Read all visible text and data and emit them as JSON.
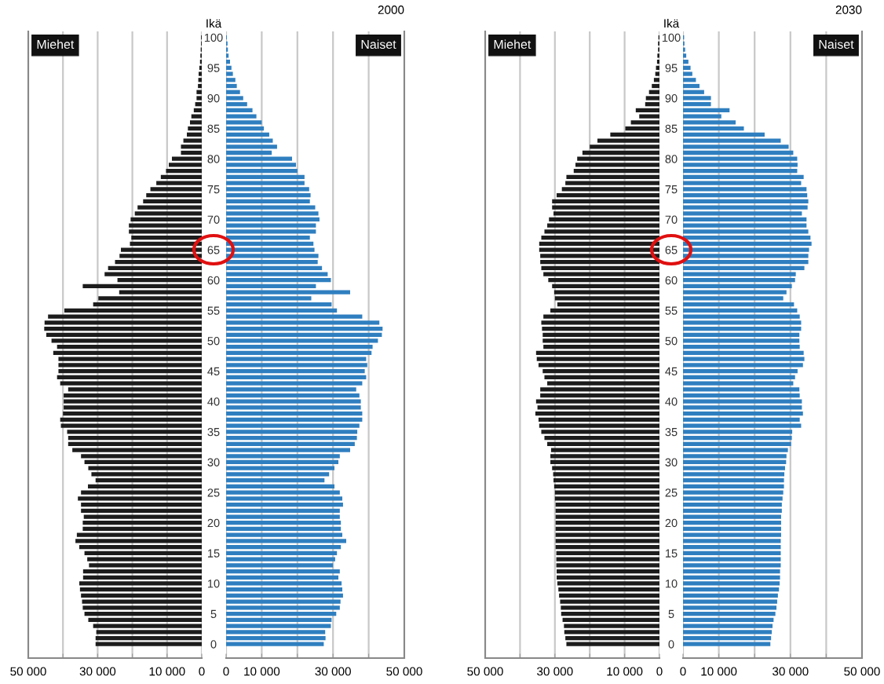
{
  "chart_data": [
    {
      "type": "bar",
      "orientation": "horizontal",
      "ylabel": "Ikä",
      "legend": "top left",
      "grid": "x",
      "categories": [
        "100",
        null,
        null,
        null,
        null,
        "95",
        null,
        null,
        null,
        null,
        "90",
        null,
        null,
        null,
        null,
        "85",
        null,
        null,
        null,
        null,
        "80",
        null,
        null,
        null,
        null,
        "75",
        null,
        null,
        null,
        null,
        "70",
        null,
        null,
        null,
        null,
        "65",
        null,
        null,
        null,
        null,
        "60",
        null,
        null,
        null,
        null,
        "55",
        null,
        null,
        null,
        null,
        "50",
        null,
        null,
        null,
        null,
        "45",
        null,
        null,
        null,
        null,
        "40",
        null,
        null,
        null,
        null,
        "35",
        null,
        null,
        null,
        null,
        "30",
        null,
        null,
        null,
        null,
        "25",
        null,
        null,
        null,
        null,
        "20",
        null,
        null,
        null,
        null,
        "15",
        null,
        null,
        null,
        null,
        "10",
        null,
        null,
        null,
        null,
        "5",
        null,
        null,
        null,
        null,
        "0"
      ],
      "xlim": [
        50000,
        0
      ],
      "xticks": [
        {
          "value": 50000,
          "label": "50 000"
        },
        {
          "value": 40000,
          "label": null
        },
        {
          "value": 30000,
          "label": "30 000"
        },
        {
          "value": 20000,
          "label": null
        },
        {
          "value": 10000,
          "label": "10 000"
        },
        0
      ],
      "series": [
        {
          "name": "Miehet",
          "color": "#1c1c1c",
          "values": [
            200,
            200,
            300,
            400,
            500,
            700,
            900,
            1000,
            1100,
            1500,
            1500,
            1900,
            2300,
            3000,
            3400,
            4000,
            4300,
            5300,
            6000,
            6000,
            8600,
            9500,
            10300,
            11800,
            13100,
            14800,
            16000,
            16900,
            18500,
            19300,
            20500,
            21000,
            21000,
            20300,
            20700,
            23300,
            23700,
            25000,
            27000,
            28000,
            24300,
            34300,
            23800,
            29800,
            31300,
            39600,
            44300,
            45300,
            45400,
            44800,
            43300,
            41700,
            42800,
            41300,
            41300,
            41300,
            41700,
            40800,
            38500,
            39800,
            39800,
            39800,
            40000,
            40800,
            40600,
            38800,
            38500,
            38500,
            37300,
            34800,
            33800,
            32700,
            31800,
            30600,
            32800,
            34800,
            35700,
            34800,
            34800,
            34000,
            34300,
            34300,
            36000,
            36400,
            35300,
            33800,
            33000,
            32500,
            34200,
            34200,
            35300,
            35100,
            34800,
            34500,
            34300,
            33800,
            32700,
            31300,
            30400,
            30600,
            30600
          ]
        }
      ]
    },
    {
      "type": "bar",
      "orientation": "horizontal",
      "title": "2000",
      "legend": "top right",
      "grid": "x",
      "tick_labels": "x",
      "categories": [
        "100",
        null,
        null,
        null,
        null,
        "95",
        null,
        null,
        null,
        null,
        "90",
        null,
        null,
        null,
        null,
        "85",
        null,
        null,
        null,
        null,
        "80",
        null,
        null,
        null,
        null,
        "75",
        null,
        null,
        null,
        null,
        "70",
        null,
        null,
        null,
        null,
        "65",
        null,
        null,
        null,
        null,
        "60",
        null,
        null,
        null,
        null,
        "55",
        null,
        null,
        null,
        null,
        "50",
        null,
        null,
        null,
        null,
        "45",
        null,
        null,
        null,
        null,
        "40",
        null,
        null,
        null,
        null,
        "35",
        null,
        null,
        null,
        null,
        "30",
        null,
        null,
        null,
        null,
        "25",
        null,
        null,
        null,
        null,
        "20",
        null,
        null,
        null,
        null,
        "15",
        null,
        null,
        null,
        null,
        "10",
        null,
        null,
        null,
        null,
        "5",
        null,
        null,
        null,
        null,
        "0"
      ],
      "xlim": [
        0,
        50000
      ],
      "xticks": [
        0,
        {
          "value": 10000,
          "label": "10 000"
        },
        {
          "value": 20000,
          "label": null
        },
        {
          "value": 30000,
          "label": "30 000"
        },
        {
          "value": 40000,
          "label": null
        },
        {
          "value": 50000,
          "label": "50 000"
        }
      ],
      "series": [
        {
          "name": "Naiset",
          "color": "#2f7fc0",
          "values": [
            200,
            400,
            500,
            700,
            1100,
            1500,
            1900,
            2600,
            3000,
            3900,
            4800,
            5900,
            7400,
            8500,
            10000,
            10600,
            12100,
            13100,
            14300,
            12800,
            18500,
            19600,
            20000,
            22000,
            22000,
            23300,
            23700,
            23500,
            25000,
            25900,
            26200,
            25200,
            25200,
            23500,
            24500,
            24800,
            25900,
            25700,
            26900,
            28500,
            29400,
            25200,
            34800,
            23900,
            29600,
            31100,
            38200,
            43000,
            43900,
            43700,
            42600,
            41100,
            40800,
            39300,
            39600,
            38900,
            39300,
            38200,
            36500,
            37400,
            37800,
            37800,
            38200,
            38200,
            37400,
            36800,
            36700,
            36100,
            34800,
            31900,
            31500,
            30400,
            28900,
            27600,
            30400,
            31900,
            32600,
            32800,
            31900,
            31900,
            32200,
            32200,
            32600,
            33700,
            32200,
            31100,
            30600,
            30000,
            31900,
            31500,
            32400,
            32600,
            32800,
            32100,
            31900,
            30900,
            29600,
            29400,
            27800,
            27900,
            27400
          ]
        }
      ]
    },
    {
      "type": "bar",
      "orientation": "horizontal",
      "ylabel": "Ikä",
      "legend": "top left",
      "grid": "x",
      "categories": [
        "100",
        null,
        null,
        null,
        null,
        "95",
        null,
        null,
        null,
        null,
        "90",
        null,
        null,
        null,
        null,
        "85",
        null,
        null,
        null,
        null,
        "80",
        null,
        null,
        null,
        null,
        "75",
        null,
        null,
        null,
        null,
        "70",
        null,
        null,
        null,
        null,
        "65",
        null,
        null,
        null,
        null,
        "60",
        null,
        null,
        null,
        null,
        "55",
        null,
        null,
        null,
        null,
        "50",
        null,
        null,
        null,
        null,
        "45",
        null,
        null,
        null,
        null,
        "40",
        null,
        null,
        null,
        null,
        "35",
        null,
        null,
        null,
        null,
        "30",
        null,
        null,
        null,
        null,
        "25",
        null,
        null,
        null,
        null,
        "20",
        null,
        null,
        null,
        null,
        "15",
        null,
        null,
        null,
        null,
        "10",
        null,
        null,
        null,
        null,
        "5",
        null,
        null,
        null,
        null,
        "0"
      ],
      "xlim": [
        50000,
        0
      ],
      "xticks": [
        {
          "value": 50000,
          "label": "50 000"
        },
        {
          "value": 40000,
          "label": null
        },
        {
          "value": 30000,
          "label": "30 000"
        },
        {
          "value": 20000,
          "label": null
        },
        {
          "value": 10000,
          "label": "10 000"
        },
        0
      ],
      "series": [
        {
          "name": "Miehet",
          "color": "#1c1c1c",
          "values": [
            300,
            400,
            400,
            600,
            700,
            1000,
            1200,
            1600,
            2200,
            3000,
            3900,
            4100,
            6800,
            5800,
            8200,
            9800,
            14100,
            17800,
            20000,
            22100,
            23600,
            24100,
            24600,
            26700,
            27000,
            28000,
            29500,
            30800,
            30800,
            30400,
            31700,
            32200,
            33000,
            33900,
            34500,
            34500,
            34200,
            34200,
            33900,
            33300,
            31900,
            30800,
            30200,
            30000,
            29300,
            31300,
            33300,
            33900,
            33700,
            33500,
            33500,
            33300,
            35400,
            35200,
            34700,
            33500,
            33000,
            32200,
            34200,
            34200,
            35400,
            35000,
            35600,
            34700,
            34500,
            33900,
            33000,
            32200,
            31100,
            31300,
            31300,
            30800,
            30500,
            30400,
            30200,
            30000,
            30000,
            29800,
            29800,
            29800,
            29800,
            29800,
            29800,
            29800,
            29800,
            29600,
            29600,
            29600,
            29500,
            29500,
            29300,
            29000,
            28800,
            28500,
            28300,
            28200,
            27800,
            27400,
            27300,
            27000,
            26700
          ]
        }
      ]
    },
    {
      "type": "bar",
      "orientation": "horizontal",
      "title": "2030",
      "legend": "top right",
      "grid": "x",
      "tick_labels": "x",
      "categories": [
        "100",
        null,
        null,
        null,
        null,
        "95",
        null,
        null,
        null,
        null,
        "90",
        null,
        null,
        null,
        null,
        "85",
        null,
        null,
        null,
        null,
        "80",
        null,
        null,
        null,
        null,
        "75",
        null,
        null,
        null,
        null,
        "70",
        null,
        null,
        null,
        null,
        "65",
        null,
        null,
        null,
        null,
        "60",
        null,
        null,
        null,
        null,
        "55",
        null,
        null,
        null,
        null,
        "50",
        null,
        null,
        null,
        null,
        "45",
        null,
        null,
        null,
        null,
        "40",
        null,
        null,
        null,
        null,
        "35",
        null,
        null,
        null,
        null,
        "30",
        null,
        null,
        null,
        null,
        "25",
        null,
        null,
        null,
        null,
        "20",
        null,
        null,
        null,
        null,
        "15",
        null,
        null,
        null,
        null,
        "10",
        null,
        null,
        null,
        null,
        "5",
        null,
        null,
        null,
        null,
        "0"
      ],
      "xlim": [
        0,
        50000
      ],
      "xticks": [
        0,
        {
          "value": 10000,
          "label": "10 000"
        },
        {
          "value": 20000,
          "label": null
        },
        {
          "value": 30000,
          "label": "30 000"
        },
        {
          "value": 40000,
          "label": null
        },
        {
          "value": 50000,
          "label": "50 000"
        }
      ],
      "series": [
        {
          "name": "Naiset",
          "color": "#2f7fc0",
          "values": [
            300,
            400,
            600,
            900,
            1500,
            2100,
            2600,
            3600,
            4600,
            5900,
            7800,
            7800,
            13000,
            10700,
            14700,
            17000,
            22800,
            27300,
            29500,
            30800,
            31900,
            32000,
            31900,
            33700,
            33000,
            34500,
            34700,
            35000,
            34800,
            33200,
            34500,
            34500,
            35000,
            35600,
            35900,
            35200,
            35000,
            35000,
            33900,
            31500,
            31300,
            30400,
            28900,
            28000,
            31000,
            31900,
            32600,
            33000,
            33000,
            32500,
            32500,
            32600,
            33700,
            33900,
            33500,
            32000,
            31300,
            30800,
            32500,
            32600,
            33200,
            33200,
            33500,
            32600,
            33000,
            30500,
            30400,
            30200,
            29300,
            28900,
            28800,
            28500,
            28300,
            28200,
            28200,
            28000,
            27800,
            27600,
            27600,
            27400,
            27400,
            27400,
            27400,
            27300,
            27300,
            27300,
            27300,
            27300,
            27100,
            27100,
            27000,
            26800,
            26500,
            26300,
            26100,
            25800,
            25300,
            25000,
            24800,
            24600,
            24400
          ]
        }
      ]
    }
  ]
}
